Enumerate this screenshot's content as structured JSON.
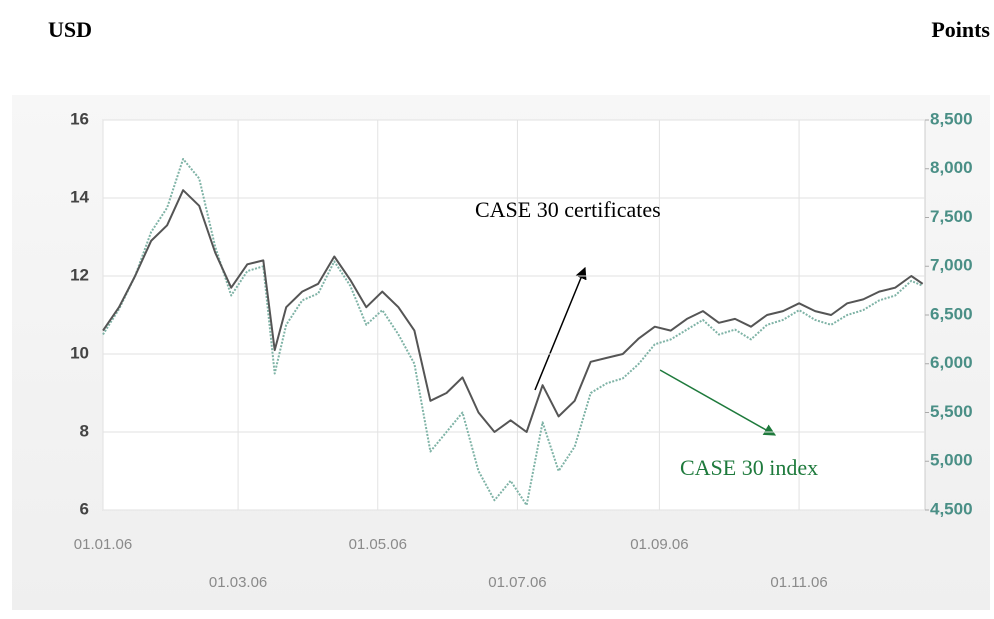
{
  "chart_data": {
    "type": "line",
    "y_label": "USD",
    "y2_label": "Points",
    "x": [
      "2006-01-01",
      "2006-01-08",
      "2006-01-15",
      "2006-01-22",
      "2006-01-29",
      "2006-02-05",
      "2006-02-12",
      "2006-02-19",
      "2006-02-26",
      "2006-03-05",
      "2006-03-12",
      "2006-03-17",
      "2006-03-22",
      "2006-03-29",
      "2006-04-05",
      "2006-04-12",
      "2006-04-19",
      "2006-04-26",
      "2006-05-03",
      "2006-05-10",
      "2006-05-17",
      "2006-05-24",
      "2006-05-31",
      "2006-06-07",
      "2006-06-14",
      "2006-06-21",
      "2006-06-28",
      "2006-07-05",
      "2006-07-12",
      "2006-07-19",
      "2006-07-26",
      "2006-08-02",
      "2006-08-09",
      "2006-08-16",
      "2006-08-23",
      "2006-08-30",
      "2006-09-06",
      "2006-09-13",
      "2006-09-20",
      "2006-09-27",
      "2006-10-04",
      "2006-10-11",
      "2006-10-18",
      "2006-10-25",
      "2006-11-01",
      "2006-11-08",
      "2006-11-15",
      "2006-11-22",
      "2006-11-29",
      "2006-12-06",
      "2006-12-13",
      "2006-12-20",
      "2006-12-25"
    ],
    "series": [
      {
        "name": "CASE 30 certificates",
        "color": "#555555",
        "axis": "y",
        "values": [
          10.6,
          11.2,
          12.0,
          12.9,
          13.3,
          14.2,
          13.8,
          12.6,
          11.7,
          12.3,
          12.4,
          10.1,
          11.2,
          11.6,
          11.8,
          12.5,
          11.9,
          11.2,
          11.6,
          11.2,
          10.6,
          8.8,
          9.0,
          9.4,
          8.5,
          8.0,
          8.3,
          8.0,
          9.2,
          8.4,
          8.8,
          9.8,
          9.9,
          10.0,
          10.4,
          10.7,
          10.6,
          10.9,
          11.1,
          10.8,
          10.9,
          10.7,
          11.0,
          11.1,
          11.3,
          11.1,
          11.0,
          11.3,
          11.4,
          11.6,
          11.7,
          12.0,
          11.8
        ]
      },
      {
        "name": "CASE 30 index",
        "color": "#7fb3a6",
        "axis": "y2",
        "values": [
          6300,
          6560,
          6900,
          7350,
          7600,
          8100,
          7900,
          7200,
          6700,
          6950,
          7000,
          5900,
          6400,
          6650,
          6720,
          7050,
          6800,
          6400,
          6550,
          6300,
          6000,
          5100,
          5300,
          5500,
          4900,
          4600,
          4800,
          4550,
          5400,
          4900,
          5150,
          5700,
          5800,
          5850,
          6000,
          6200,
          6250,
          6350,
          6450,
          6300,
          6350,
          6250,
          6400,
          6450,
          6550,
          6450,
          6400,
          6500,
          6550,
          6650,
          6700,
          6850,
          6800
        ]
      }
    ],
    "annotations": [
      {
        "text": "CASE 30 certificates",
        "color": "#000000"
      },
      {
        "text": "CASE 30 index",
        "color": "#1e7a3c"
      }
    ],
    "xlim": [
      "2006-01-01",
      "2006-12-26"
    ],
    "xticks": [
      {
        "value": "2006-01-01",
        "label": "01.01.06"
      },
      {
        "value": "2006-03-01",
        "label": "01.03.06"
      },
      {
        "value": "2006-05-01",
        "label": "01.05.06"
      },
      {
        "value": "2006-07-01",
        "label": "01.07.06"
      },
      {
        "value": "2006-09-01",
        "label": "01.09.06"
      },
      {
        "value": "2006-11-01",
        "label": "01.11.06"
      }
    ],
    "ylim": [
      6,
      16
    ],
    "yticks": [
      6,
      8,
      10,
      12,
      14,
      16
    ],
    "y2lim": [
      4500,
      8500
    ],
    "y2ticks": [
      {
        "value": 4500,
        "label": "4,500"
      },
      {
        "value": 5000,
        "label": "5,000"
      },
      {
        "value": 5500,
        "label": "5,500"
      },
      {
        "value": 6000,
        "label": "6,000"
      },
      {
        "value": 6500,
        "label": "6,500"
      },
      {
        "value": 7000,
        "label": "7,000"
      },
      {
        "value": 7500,
        "label": "7,500"
      },
      {
        "value": 8000,
        "label": "8,000"
      },
      {
        "value": 8500,
        "label": "8,500"
      }
    ],
    "grid": true
  }
}
